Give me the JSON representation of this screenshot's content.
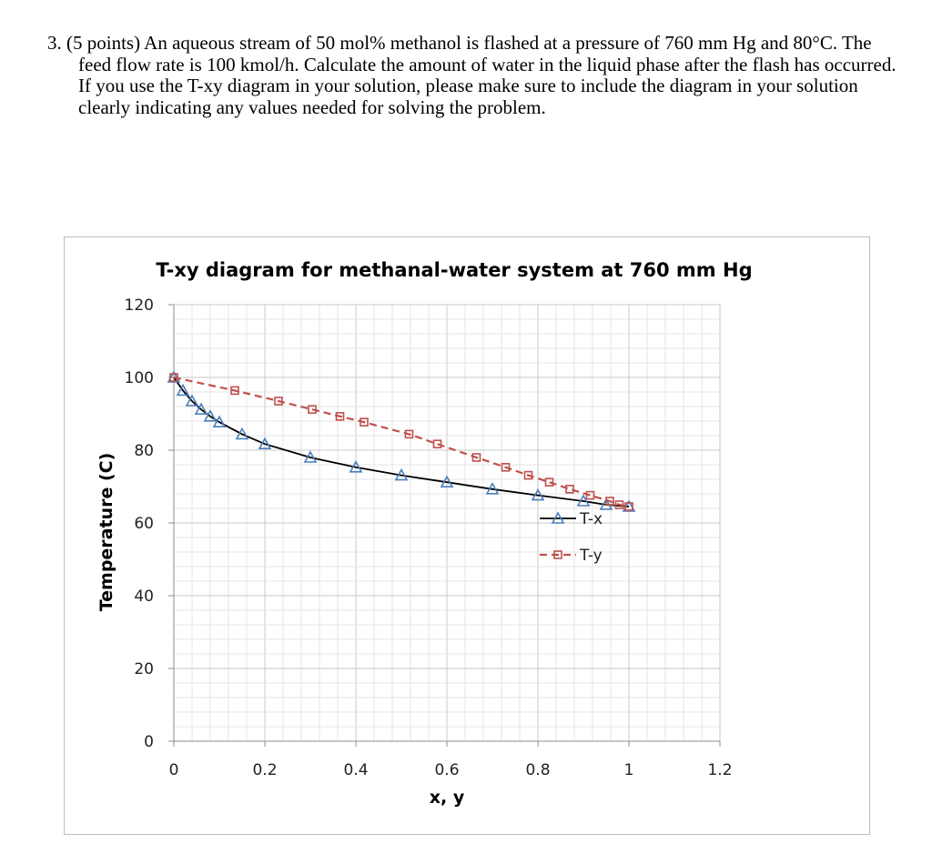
{
  "problem": {
    "text": "3. (5 points) An aqueous stream of 50 mol% methanol is flashed at a pressure of 760 mm Hg and 80°C. The feed flow rate is 100 kmol/h. Calculate the amount of water in the liquid phase after the flash has occurred. If you use the T-xy diagram in your solution, please make sure to include the diagram in your solution clearly indicating any values needed for solving the problem."
  },
  "chart_data": {
    "type": "line",
    "title": "T-xy diagram for methanal-water system at 760 mm Hg",
    "xlabel": "x, y",
    "ylabel": "Temperature (C)",
    "xlim": [
      0,
      1.2
    ],
    "ylim": [
      0,
      120
    ],
    "x_ticks": [
      "0",
      "0.2",
      "0.4",
      "0.6",
      "0.8",
      "1",
      "1.2"
    ],
    "y_ticks": [
      "0",
      "20",
      "40",
      "60",
      "80",
      "100",
      "120"
    ],
    "grid": true,
    "legend_position": "right",
    "series": [
      {
        "name": "T-x",
        "line_style": "solid",
        "marker": "triangle",
        "line_color": "#000000",
        "marker_color": "#4a7ebb",
        "x": [
          0,
          0.02,
          0.04,
          0.06,
          0.08,
          0.1,
          0.15,
          0.2,
          0.3,
          0.4,
          0.5,
          0.6,
          0.7,
          0.8,
          0.9,
          0.95,
          1.0
        ],
        "y": [
          100,
          96.4,
          93.5,
          91.2,
          89.3,
          87.7,
          84.4,
          81.7,
          78.0,
          75.3,
          73.1,
          71.2,
          69.3,
          67.6,
          66.0,
          65.0,
          64.5
        ]
      },
      {
        "name": "T-y",
        "line_style": "dashed",
        "marker": "square",
        "line_color": "#c0504d",
        "marker_color": "#c0504d",
        "x": [
          0,
          0.134,
          0.23,
          0.304,
          0.365,
          0.418,
          0.517,
          0.579,
          0.665,
          0.729,
          0.779,
          0.825,
          0.87,
          0.915,
          0.958,
          0.979,
          1.0
        ],
        "y": [
          100,
          96.4,
          93.5,
          91.2,
          89.3,
          87.7,
          84.4,
          81.7,
          78.0,
          75.3,
          73.1,
          71.2,
          69.3,
          67.6,
          66.0,
          65.0,
          64.5
        ]
      }
    ]
  }
}
